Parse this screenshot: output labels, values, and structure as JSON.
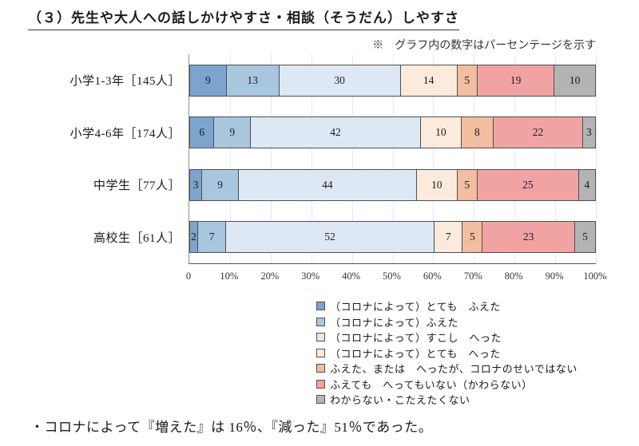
{
  "page": {
    "title": "（３）先生や大人への話しかけやすさ・相談（そうだん）しやすさ",
    "note": "※　グラフ内の数字はパーセンテージを示す",
    "footnote": "・コロナによって『増えた』は 16％、『減った』51％であった。"
  },
  "colors": {
    "segment_border": "#4f4f4f",
    "axis_line": "#8f8f8f",
    "baseline": "#555555",
    "gridline": "#e7e8f2",
    "text": "#1a1a1a"
  },
  "chart_data": {
    "type": "bar",
    "orientation": "horizontal",
    "stacked": true,
    "unit": "percent",
    "categories": [
      "小学1-3年［145人］",
      "小学4-6年［174人］",
      "中学生［77人］",
      "高校生［61人］"
    ],
    "series": [
      {
        "name": "（コロナによって）とても　ふえた",
        "color": "#7da4cc",
        "values": [
          9,
          6,
          3,
          2
        ]
      },
      {
        "name": "（コロナによって）ふえた",
        "color": "#a9c6df",
        "values": [
          13,
          9,
          9,
          7
        ]
      },
      {
        "name": "（コロナによって）すこし　へった",
        "color": "#dde8f4",
        "values": [
          30,
          42,
          44,
          52
        ]
      },
      {
        "name": "（コロナによって）とても　へった",
        "color": "#fcebdd",
        "values": [
          14,
          10,
          10,
          7
        ]
      },
      {
        "name": "ふえた、または　へったが、コロナのせいではない",
        "color": "#f3bd9f",
        "values": [
          5,
          8,
          5,
          5
        ]
      },
      {
        "name": "ふえても　へってもいない（かわらない）",
        "color": "#f1a3a3",
        "values": [
          19,
          22,
          25,
          23
        ]
      },
      {
        "name": "わからない・こたえたくない",
        "color": "#b4b4b4",
        "values": [
          10,
          3,
          4,
          5
        ]
      }
    ],
    "x_ticks": [
      "0",
      "10%",
      "20%",
      "30%",
      "40%",
      "50%",
      "60%",
      "70%",
      "80%",
      "90%",
      "100%"
    ],
    "xlim": [
      0,
      100
    ],
    "grid": true,
    "legend_position": "bottom-right",
    "value_labels": "inside"
  }
}
